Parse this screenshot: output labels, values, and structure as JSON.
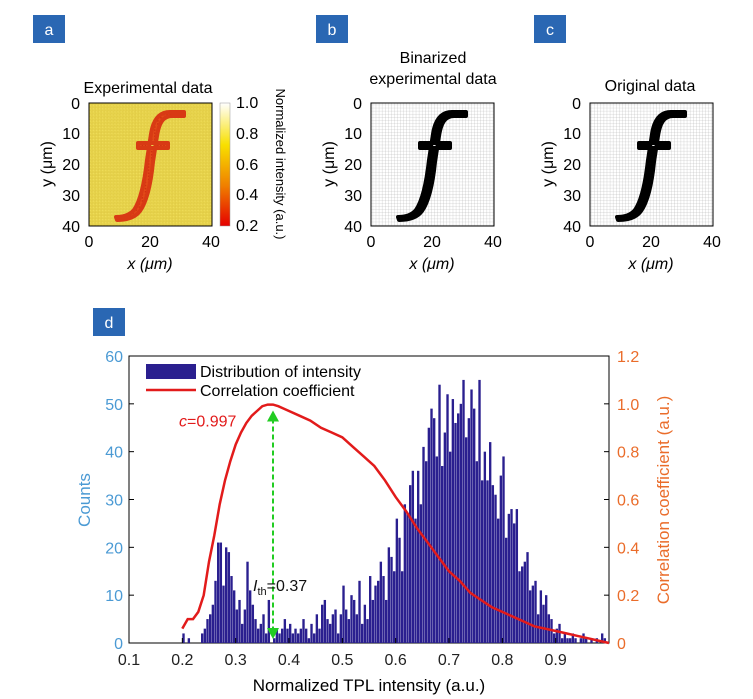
{
  "panel_labels": [
    "a",
    "b",
    "c",
    "d"
  ],
  "colors": {
    "label_box": "#2a67b3",
    "histogram": "#2a1f8f",
    "correlation_line": "#e21b1b",
    "threshold_line": "#22cc22",
    "left_axis": "#4b9ad4",
    "right_axis": "#ea6c2a"
  },
  "panel_a": {
    "title": "Experimental data",
    "xlabel": "x (μm)",
    "ylabel": "y (μm)",
    "x_ticks": [
      "0",
      "20",
      "40"
    ],
    "y_ticks": [
      "0",
      "10",
      "20",
      "30",
      "40"
    ],
    "colorbar": {
      "label": "Normalized intensity (a.u.)",
      "ticks": [
        "1.0",
        "0.8",
        "0.6",
        "0.4",
        "0.2"
      ],
      "colormap": "hot"
    },
    "image_content": "letter f"
  },
  "panel_b": {
    "title_lines": [
      "Binarized",
      "experimental data"
    ],
    "xlabel": "x (μm)",
    "ylabel": "y (μm)",
    "x_ticks": [
      "0",
      "20",
      "40"
    ],
    "y_ticks": [
      "0",
      "10",
      "20",
      "30",
      "40"
    ],
    "image_content": "letter f"
  },
  "panel_c": {
    "title": "Original data",
    "xlabel": "x (μm)",
    "ylabel": "y (μm)",
    "x_ticks": [
      "0",
      "20",
      "40"
    ],
    "y_ticks": [
      "0",
      "10",
      "20",
      "30",
      "40"
    ],
    "image_content": "letter f"
  },
  "chart_data": {
    "type": "bar",
    "xlabel": "Normalized TPL intensity (a.u.)",
    "ylabel": "Counts",
    "y2label": "Correlation coefficient (a.u.)",
    "xlim": [
      0.1,
      1.0
    ],
    "ylim": [
      0,
      60
    ],
    "y2lim": [
      0,
      1.2
    ],
    "x_ticks": [
      "0.1",
      "0.2",
      "0.3",
      "0.4",
      "0.5",
      "0.6",
      "0.7",
      "0.8",
      "0.9"
    ],
    "y_ticks": [
      "0",
      "10",
      "20",
      "30",
      "40",
      "50",
      "60"
    ],
    "y2_ticks": [
      "0",
      "0.2",
      "0.4",
      "0.6",
      "0.8",
      "1.0",
      "1.2"
    ],
    "legend": [
      "Distribution of intensity",
      "Correlation coefficient"
    ],
    "legend_position": "top-left",
    "bin_width": 0.005,
    "histogram": {
      "x": [
        0.2,
        0.205,
        0.21,
        0.215,
        0.22,
        0.225,
        0.23,
        0.235,
        0.24,
        0.245,
        0.25,
        0.255,
        0.26,
        0.265,
        0.27,
        0.275,
        0.28,
        0.285,
        0.29,
        0.295,
        0.3,
        0.305,
        0.31,
        0.315,
        0.32,
        0.325,
        0.33,
        0.335,
        0.34,
        0.345,
        0.35,
        0.355,
        0.36,
        0.365,
        0.37,
        0.375,
        0.38,
        0.385,
        0.39,
        0.395,
        0.4,
        0.405,
        0.41,
        0.415,
        0.42,
        0.425,
        0.43,
        0.435,
        0.44,
        0.445,
        0.45,
        0.455,
        0.46,
        0.465,
        0.47,
        0.475,
        0.48,
        0.485,
        0.49,
        0.495,
        0.5,
        0.505,
        0.51,
        0.515,
        0.52,
        0.525,
        0.53,
        0.535,
        0.54,
        0.545,
        0.55,
        0.555,
        0.56,
        0.565,
        0.57,
        0.575,
        0.58,
        0.585,
        0.59,
        0.595,
        0.6,
        0.605,
        0.61,
        0.615,
        0.62,
        0.625,
        0.63,
        0.635,
        0.64,
        0.645,
        0.65,
        0.655,
        0.66,
        0.665,
        0.67,
        0.675,
        0.68,
        0.685,
        0.69,
        0.695,
        0.7,
        0.705,
        0.71,
        0.715,
        0.72,
        0.725,
        0.73,
        0.735,
        0.74,
        0.745,
        0.75,
        0.755,
        0.76,
        0.765,
        0.77,
        0.775,
        0.78,
        0.785,
        0.79,
        0.795,
        0.8,
        0.805,
        0.81,
        0.815,
        0.82,
        0.825,
        0.83,
        0.835,
        0.84,
        0.845,
        0.85,
        0.855,
        0.86,
        0.865,
        0.87,
        0.875,
        0.88,
        0.885,
        0.89,
        0.895,
        0.9,
        0.905,
        0.91,
        0.915,
        0.92,
        0.925,
        0.93,
        0.935,
        0.94,
        0.945,
        0.95,
        0.955,
        0.96,
        0.965,
        0.97,
        0.975,
        0.98,
        0.985,
        0.99,
        0.995
      ],
      "counts": [
        2,
        0,
        1,
        0,
        0,
        0,
        0,
        2,
        3,
        5,
        6,
        8,
        13,
        21,
        21,
        12,
        20,
        19,
        14,
        11,
        7,
        9,
        4,
        7,
        17,
        11,
        8,
        5,
        3,
        4,
        6,
        2,
        9,
        0,
        1,
        3,
        2,
        3,
        5,
        3,
        4,
        2,
        3,
        2,
        3,
        5,
        3,
        1,
        4,
        2,
        6,
        3,
        8,
        9,
        5,
        4,
        6,
        7,
        2,
        6,
        12,
        7,
        5,
        10,
        9,
        6,
        13,
        4,
        8,
        5,
        14,
        9,
        12,
        13,
        17,
        14,
        9,
        20,
        18,
        15,
        26,
        22,
        15,
        29,
        27,
        33,
        36,
        26,
        36,
        29,
        41,
        38,
        45,
        49,
        47,
        39,
        54,
        37,
        44,
        52,
        40,
        51,
        46,
        48,
        50,
        55,
        43,
        47,
        53,
        49,
        38,
        55,
        34,
        40,
        34,
        42,
        33,
        31,
        26,
        35,
        39,
        22,
        27,
        28,
        25,
        28,
        15,
        16,
        17,
        19,
        11,
        12,
        13,
        6,
        11,
        8,
        10,
        6,
        5,
        2,
        3,
        4,
        1,
        2,
        1,
        1,
        2,
        1,
        0,
        1,
        2,
        1,
        0,
        1,
        0,
        1,
        0,
        2,
        1,
        0
      ]
    },
    "correlation": {
      "x": [
        0.2,
        0.21,
        0.22,
        0.23,
        0.24,
        0.25,
        0.26,
        0.27,
        0.28,
        0.29,
        0.3,
        0.31,
        0.32,
        0.33,
        0.34,
        0.35,
        0.36,
        0.37,
        0.38,
        0.39,
        0.4,
        0.42,
        0.44,
        0.46,
        0.48,
        0.5,
        0.52,
        0.54,
        0.56,
        0.58,
        0.6,
        0.62,
        0.64,
        0.66,
        0.68,
        0.7,
        0.72,
        0.74,
        0.76,
        0.78,
        0.8,
        0.82,
        0.84,
        0.86,
        0.88,
        0.9,
        0.92,
        0.94,
        0.96,
        0.98,
        1.0
      ],
      "y": [
        0.06,
        0.1,
        0.1,
        0.13,
        0.2,
        0.34,
        0.45,
        0.58,
        0.68,
        0.76,
        0.83,
        0.88,
        0.92,
        0.95,
        0.97,
        0.99,
        0.997,
        0.997,
        0.99,
        0.98,
        0.97,
        0.95,
        0.93,
        0.9,
        0.88,
        0.86,
        0.82,
        0.78,
        0.74,
        0.68,
        0.61,
        0.55,
        0.48,
        0.42,
        0.36,
        0.3,
        0.26,
        0.21,
        0.18,
        0.15,
        0.13,
        0.11,
        0.09,
        0.07,
        0.06,
        0.05,
        0.04,
        0.03,
        0.02,
        0.01,
        0.0
      ]
    },
    "threshold": {
      "x": 0.37,
      "label_prefix": "I",
      "label_subscript": "th",
      "label_suffix": "=0.37"
    },
    "peak_annotation": {
      "x": 0.37,
      "value": 0.997,
      "label_prefix": "c",
      "label_suffix": "=0.997"
    }
  }
}
